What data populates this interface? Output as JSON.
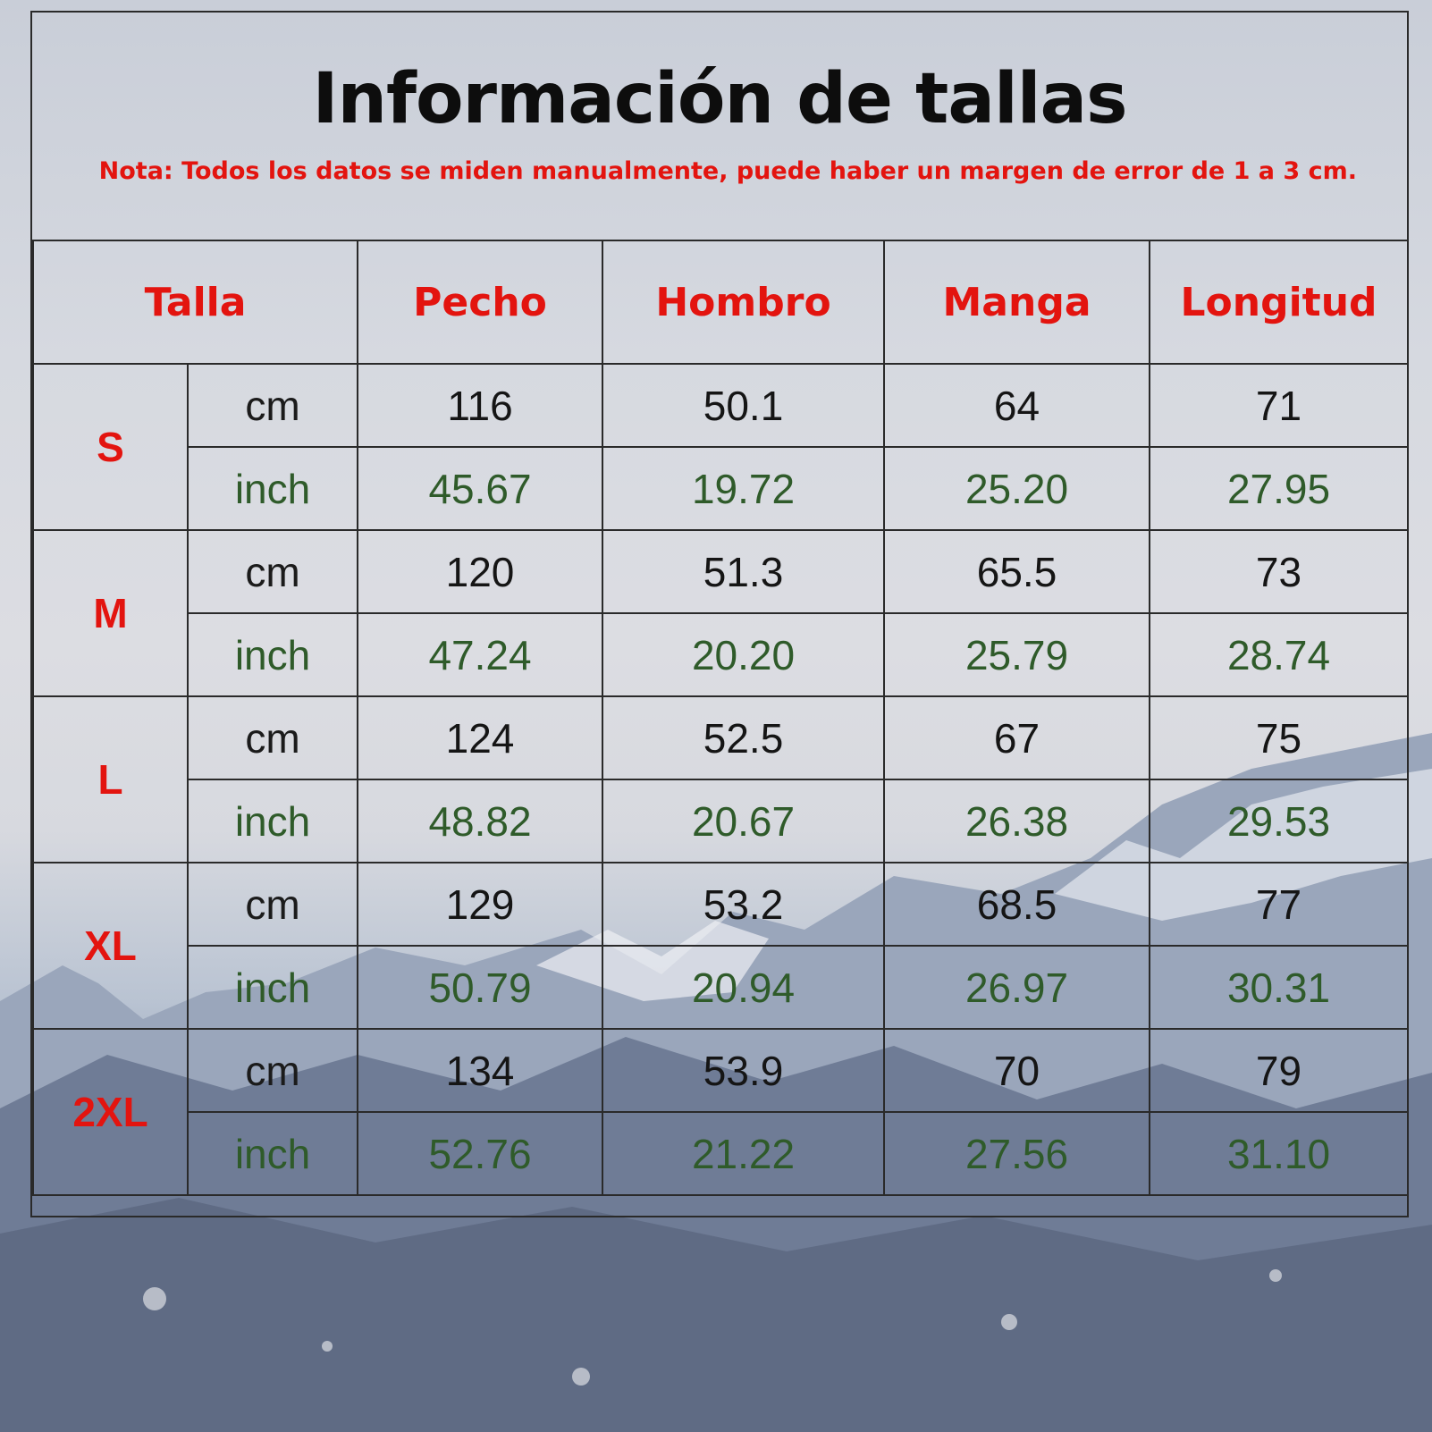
{
  "title": "Información de tallas",
  "note": "Nota: Todos los datos se miden manualmente, puede haber un margen de error de 1 a 3 cm.",
  "colors": {
    "heading_red": "#e3140f",
    "inch_green": "#2f5b2a",
    "text_dark": "#151515",
    "grid": "#2a2a2a"
  },
  "table": {
    "headers": [
      "Talla",
      "Pecho",
      "Hombro",
      "Manga",
      "Longitud"
    ],
    "rows": [
      {
        "size": "S",
        "cm": {
          "unit": "cm",
          "values": [
            "116",
            "50.1",
            "64",
            "71"
          ]
        },
        "inch": {
          "unit": "inch",
          "values": [
            "45.67",
            "19.72",
            "25.20",
            "27.95"
          ]
        }
      },
      {
        "size": "M",
        "cm": {
          "unit": "cm",
          "values": [
            "120",
            "51.3",
            "65.5",
            "73"
          ]
        },
        "inch": {
          "unit": "inch",
          "values": [
            "47.24",
            "20.20",
            "25.79",
            "28.74"
          ]
        }
      },
      {
        "size": "L",
        "cm": {
          "unit": "cm",
          "values": [
            "124",
            "52.5",
            "67",
            "75"
          ]
        },
        "inch": {
          "unit": "inch",
          "values": [
            "48.82",
            "20.67",
            "26.38",
            "29.53"
          ]
        }
      },
      {
        "size": "XL",
        "cm": {
          "unit": "cm",
          "values": [
            "129",
            "53.2",
            "68.5",
            "77"
          ]
        },
        "inch": {
          "unit": "inch",
          "values": [
            "50.79",
            "20.94",
            "26.97",
            "30.31"
          ]
        }
      },
      {
        "size": "2XL",
        "cm": {
          "unit": "cm",
          "values": [
            "134",
            "53.9",
            "70",
            "79"
          ]
        },
        "inch": {
          "unit": "inch",
          "values": [
            "52.76",
            "21.22",
            "27.56",
            "31.10"
          ]
        }
      }
    ]
  }
}
